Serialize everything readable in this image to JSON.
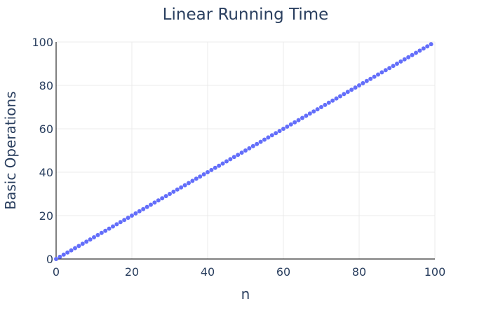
{
  "chart_data": {
    "type": "scatter",
    "title": "Linear Running Time",
    "xlabel": "n",
    "ylabel": "Basic Operations",
    "xlim": [
      0,
      100
    ],
    "ylim": [
      0,
      100
    ],
    "x_ticks": [
      "0",
      "20",
      "40",
      "60",
      "80",
      "100"
    ],
    "y_ticks": [
      "0",
      "20",
      "40",
      "60",
      "80",
      "100"
    ],
    "grid": true,
    "legend": "none",
    "marker_color": "#636efa",
    "series": [
      {
        "x": [
          0,
          1,
          2,
          3,
          4,
          5,
          6,
          7,
          8,
          9,
          10,
          11,
          12,
          13,
          14,
          15,
          16,
          17,
          18,
          19,
          20,
          21,
          22,
          23,
          24,
          25,
          26,
          27,
          28,
          29,
          30,
          31,
          32,
          33,
          34,
          35,
          36,
          37,
          38,
          39,
          40,
          41,
          42,
          43,
          44,
          45,
          46,
          47,
          48,
          49,
          50,
          51,
          52,
          53,
          54,
          55,
          56,
          57,
          58,
          59,
          60,
          61,
          62,
          63,
          64,
          65,
          66,
          67,
          68,
          69,
          70,
          71,
          72,
          73,
          74,
          75,
          76,
          77,
          78,
          79,
          80,
          81,
          82,
          83,
          84,
          85,
          86,
          87,
          88,
          89,
          90,
          91,
          92,
          93,
          94,
          95,
          96,
          97,
          98,
          99
        ],
        "y": [
          0,
          1,
          2,
          3,
          4,
          5,
          6,
          7,
          8,
          9,
          10,
          11,
          12,
          13,
          14,
          15,
          16,
          17,
          18,
          19,
          20,
          21,
          22,
          23,
          24,
          25,
          26,
          27,
          28,
          29,
          30,
          31,
          32,
          33,
          34,
          35,
          36,
          37,
          38,
          39,
          40,
          41,
          42,
          43,
          44,
          45,
          46,
          47,
          48,
          49,
          50,
          51,
          52,
          53,
          54,
          55,
          56,
          57,
          58,
          59,
          60,
          61,
          62,
          63,
          64,
          65,
          66,
          67,
          68,
          69,
          70,
          71,
          72,
          73,
          74,
          75,
          76,
          77,
          78,
          79,
          80,
          81,
          82,
          83,
          84,
          85,
          86,
          87,
          88,
          89,
          90,
          91,
          92,
          93,
          94,
          95,
          96,
          97,
          98,
          99
        ]
      }
    ]
  }
}
